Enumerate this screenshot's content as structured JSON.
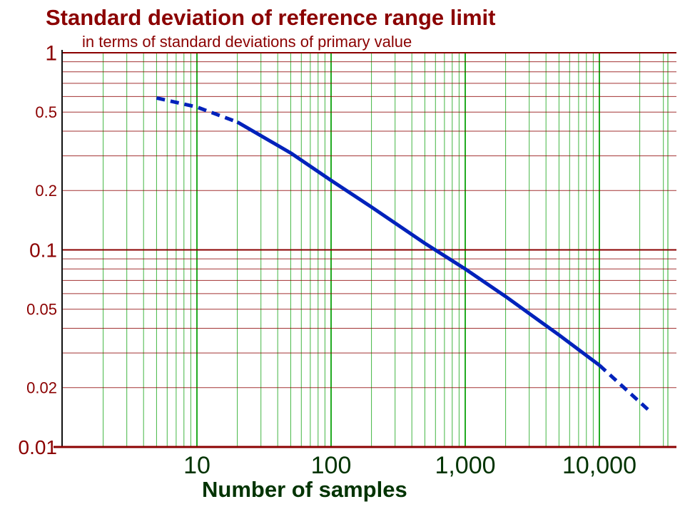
{
  "chart_data": {
    "type": "line",
    "title": "Standard deviation of reference range limit",
    "subtitle": "in terms of standard deviations of primary value",
    "xlabel": "Number of samples",
    "ylabel": "",
    "x_scale": "log",
    "y_scale": "log",
    "xlim": [
      1,
      30000
    ],
    "ylim": [
      0.01,
      1
    ],
    "grid": true,
    "x_ticks": [
      {
        "value": 10,
        "label": "10"
      },
      {
        "value": 100,
        "label": "100"
      },
      {
        "value": 1000,
        "label": "1,000"
      },
      {
        "value": 10000,
        "label": "10,000"
      }
    ],
    "y_ticks": [
      {
        "value": 1,
        "label": "1"
      },
      {
        "value": 0.5,
        "label": "0.5"
      },
      {
        "value": 0.2,
        "label": "0.2"
      },
      {
        "value": 0.1,
        "label": "0.1"
      },
      {
        "value": 0.05,
        "label": "0.05"
      },
      {
        "value": 0.02,
        "label": "0.02"
      },
      {
        "value": 0.01,
        "label": "0.01"
      }
    ],
    "series": [
      {
        "style": "dashed",
        "color": "#0022bb",
        "x": [
          5,
          10,
          20
        ],
        "y": [
          0.59,
          0.53,
          0.445
        ]
      },
      {
        "style": "solid",
        "color": "#0022bb",
        "x": [
          20,
          50,
          100,
          200,
          500,
          1000,
          2000,
          5000,
          10000
        ],
        "y": [
          0.445,
          0.31,
          0.225,
          0.165,
          0.108,
          0.08,
          0.058,
          0.037,
          0.026
        ]
      },
      {
        "style": "dashed",
        "color": "#0022bb",
        "x": [
          10000,
          23000
        ],
        "y": [
          0.026,
          0.0155
        ]
      }
    ]
  },
  "colors": {
    "title": "#8b0000",
    "y_gridlines": "#8b0000",
    "x_gridlines": "#22aa22",
    "x_labels": "#003300",
    "curve": "#0022bb"
  }
}
